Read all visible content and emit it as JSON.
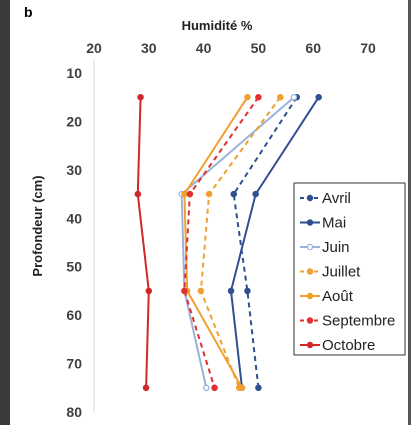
{
  "panel_label": "b",
  "chart_data": {
    "type": "line",
    "title": "Humidité %",
    "xlabel": "Humidité %",
    "ylabel": "Profondeur (cm)",
    "xlim": [
      20,
      70
    ],
    "ylim": [
      10,
      80
    ],
    "y_reversed": true,
    "x_axis_position": "top",
    "x_ticks": [
      "20",
      "30",
      "40",
      "50",
      "60",
      "70"
    ],
    "y_ticks": [
      "10",
      "20",
      "30",
      "40",
      "50",
      "60",
      "70",
      "80"
    ],
    "grid": false,
    "legend_position": "right",
    "series": [
      {
        "name": "Avril",
        "color": "#2f4f8f",
        "dash": true,
        "marker": "dot",
        "points": [
          [
            57,
            15
          ],
          [
            45.5,
            35
          ],
          [
            48,
            55
          ],
          [
            50,
            75
          ]
        ]
      },
      {
        "name": "Mai",
        "color": "#2f4f8f",
        "dash": false,
        "marker": "dot",
        "points": [
          [
            61,
            15
          ],
          [
            49.5,
            35
          ],
          [
            45,
            55
          ],
          [
            47,
            75
          ]
        ]
      },
      {
        "name": "Juin",
        "color": "#9ab3db",
        "dash": false,
        "marker": "open",
        "points": [
          [
            56.5,
            15
          ],
          [
            36,
            35
          ],
          [
            36.5,
            55
          ],
          [
            40.5,
            75
          ]
        ]
      },
      {
        "name": "Juillet",
        "color": "#f0a030",
        "dash": true,
        "marker": "dot",
        "points": [
          [
            54,
            15
          ],
          [
            41,
            35
          ],
          [
            39.5,
            55
          ],
          [
            46.5,
            75
          ]
        ]
      },
      {
        "name": "Août",
        "color": "#f0a030",
        "dash": false,
        "marker": "dot",
        "points": [
          [
            48,
            15
          ],
          [
            36.5,
            35
          ],
          [
            37,
            55
          ],
          [
            47,
            75
          ]
        ]
      },
      {
        "name": "Septembre",
        "color": "#e03030",
        "dash": true,
        "marker": "dot",
        "points": [
          [
            50,
            15
          ],
          [
            37.5,
            35
          ],
          [
            36.5,
            55
          ],
          [
            42,
            75
          ]
        ]
      },
      {
        "name": "Octobre",
        "color": "#d02828",
        "dash": false,
        "marker": "dot",
        "points": [
          [
            28.5,
            15
          ],
          [
            28,
            35
          ],
          [
            30,
            55
          ],
          [
            29.5,
            75
          ]
        ]
      }
    ]
  }
}
